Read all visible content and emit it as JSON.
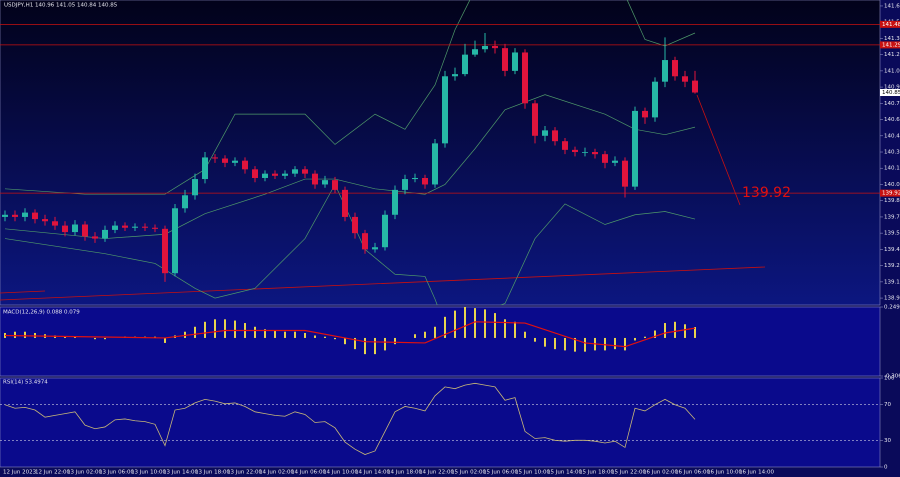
{
  "chart_data": [
    {
      "type": "candlestick",
      "title": "USDJPY,H1 140.96 141.05 140.84 140.85",
      "open": [
        139.7,
        139.72,
        139.7,
        139.74,
        139.68,
        139.66,
        139.62,
        139.56,
        139.63,
        139.52,
        139.5,
        139.58,
        139.62,
        139.6,
        139.61,
        139.6,
        139.59,
        139.18,
        139.78,
        139.9,
        140.05,
        140.25,
        140.24,
        140.2,
        140.22,
        140.14,
        140.06,
        140.1,
        140.08,
        140.1,
        140.14,
        140.1,
        140.0,
        140.04,
        139.95,
        139.7,
        139.55,
        139.4,
        139.42,
        139.72,
        139.95,
        140.05,
        140.06,
        140.0,
        140.38,
        141.0,
        141.02,
        141.2,
        141.25,
        141.28,
        141.26,
        141.05,
        141.22,
        140.75,
        140.45,
        140.5,
        140.4,
        140.32,
        140.3,
        140.3,
        140.28,
        140.2,
        140.22,
        139.98,
        140.68,
        140.62,
        140.95,
        141.15,
        141.0,
        140.96
      ],
      "high": [
        139.76,
        139.76,
        139.78,
        139.77,
        139.72,
        139.7,
        139.66,
        139.67,
        139.66,
        139.56,
        139.62,
        139.66,
        139.65,
        139.64,
        139.64,
        139.63,
        139.62,
        139.82,
        139.95,
        140.1,
        140.3,
        140.28,
        140.27,
        140.25,
        140.25,
        140.17,
        140.13,
        140.13,
        140.13,
        140.17,
        140.17,
        140.13,
        140.08,
        140.07,
        139.98,
        139.74,
        139.58,
        139.46,
        139.76,
        139.99,
        140.09,
        140.1,
        140.09,
        140.42,
        141.05,
        141.08,
        141.3,
        141.33,
        141.4,
        141.33,
        141.3,
        141.26,
        141.25,
        140.78,
        140.54,
        140.53,
        140.43,
        140.35,
        140.34,
        140.33,
        140.31,
        140.26,
        140.25,
        140.72,
        140.71,
        140.99,
        141.36,
        141.18,
        141.05,
        141.05
      ],
      "low": [
        139.66,
        139.66,
        139.66,
        139.64,
        139.62,
        139.58,
        139.52,
        139.53,
        139.48,
        139.46,
        139.47,
        139.55,
        139.57,
        139.57,
        139.57,
        139.56,
        139.1,
        139.15,
        139.74,
        139.86,
        140.01,
        140.2,
        140.16,
        140.17,
        140.1,
        140.02,
        140.03,
        140.05,
        140.05,
        140.07,
        140.06,
        139.96,
        139.97,
        139.92,
        139.66,
        139.5,
        139.36,
        139.37,
        139.39,
        139.68,
        139.91,
        140.02,
        139.96,
        139.97,
        140.34,
        140.96,
        141.0,
        141.18,
        141.22,
        141.21,
        141.0,
        141.02,
        140.7,
        140.38,
        140.4,
        140.36,
        140.28,
        140.26,
        140.26,
        140.24,
        140.15,
        140.17,
        139.88,
        139.95,
        140.56,
        140.58,
        140.9,
        140.96,
        140.9,
        140.84
      ],
      "close": [
        139.72,
        139.7,
        139.74,
        139.68,
        139.66,
        139.62,
        139.56,
        139.63,
        139.52,
        139.5,
        139.58,
        139.62,
        139.6,
        139.61,
        139.6,
        139.59,
        139.18,
        139.78,
        139.9,
        140.05,
        140.25,
        140.24,
        140.2,
        140.22,
        140.14,
        140.06,
        140.1,
        140.08,
        140.1,
        140.14,
        140.1,
        140.0,
        140.04,
        139.95,
        139.7,
        139.55,
        139.4,
        139.42,
        139.72,
        139.95,
        140.05,
        140.06,
        140.0,
        140.38,
        141.0,
        141.02,
        141.2,
        141.25,
        141.28,
        141.26,
        141.05,
        141.22,
        140.75,
        140.45,
        140.5,
        140.4,
        140.32,
        140.3,
        140.3,
        140.28,
        140.2,
        140.22,
        139.98,
        140.68,
        140.62,
        140.95,
        141.15,
        141.0,
        140.95,
        140.85
      ],
      "up_color": "#26b8a6",
      "down_color": "#e0143c",
      "band_color": "#4f9a6a",
      "bands": [
        {
          "x": [
            0,
            8,
            16,
            20,
            23,
            30,
            33,
            37,
            40,
            43,
            45,
            47,
            62,
            64,
            66,
            69
          ],
          "values": [
            139.96,
            139.91,
            139.91,
            140.14,
            140.65,
            140.65,
            140.37,
            140.65,
            140.51,
            140.92,
            141.43,
            141.8,
            141.75,
            141.34,
            141.28,
            141.4
          ]
        },
        {
          "x": [
            0,
            10,
            16,
            20,
            26,
            30,
            33,
            37,
            42,
            44,
            47,
            50,
            54,
            60,
            63,
            66,
            69
          ],
          "values": [
            139.59,
            139.5,
            139.54,
            139.73,
            139.91,
            140.05,
            140.05,
            139.96,
            139.91,
            140.0,
            140.33,
            140.69,
            140.83,
            140.65,
            140.51,
            140.46,
            140.53
          ]
        },
        {
          "x": [
            0,
            10,
            15,
            19,
            21,
            25,
            30,
            33,
            36,
            39,
            42,
            43,
            44,
            50,
            53,
            56,
            60,
            63,
            66,
            69
          ],
          "values": [
            139.5,
            139.36,
            139.27,
            139.04,
            138.95,
            139.04,
            139.5,
            140.0,
            139.4,
            139.17,
            139.15,
            138.94,
            138.7,
            138.9,
            139.5,
            139.82,
            139.63,
            139.72,
            139.75,
            139.68
          ]
        }
      ],
      "levels": [
        141.48,
        141.29,
        139.92
      ],
      "level_color": "#c81010",
      "ylim": [
        138.886,
        141.705
      ],
      "yticks": [
        141.65,
        {
          "value": 141.5,
          "label": "141.50"
        },
        141.35,
        {
          "value": 141.2,
          "label": "141.20"
        },
        141.05,
        {
          "value": 140.9,
          "label": "140.90"
        },
        140.75,
        {
          "value": 140.6,
          "label": "140.60"
        },
        140.45,
        {
          "value": 140.3,
          "label": "140.30"
        },
        140.15,
        {
          "value": 140,
          "label": "140.00"
        },
        139.85,
        {
          "value": 139.7,
          "label": "139.70"
        },
        139.55,
        {
          "value": 139.4,
          "label": "139.40"
        },
        139.25,
        {
          "value": 139.1,
          "label": "139.10"
        },
        138.95
      ],
      "x_labels": [
        "12 Jun 2023",
        "12 Jun 22:00",
        "13 Jun 02:00",
        "13 Jun 06:00",
        "13 Jun 10:00",
        "13 Jun 14:00",
        "13 Jun 18:00",
        "13 Jun 22:00",
        "14 Jun 02:00",
        "14 Jun 06:00",
        "14 Jun 10:00",
        "14 Jun 14:00",
        "14 Jun 18:00",
        "14 Jun 22:00",
        "15 Jun 02:00",
        "15 Jun 06:00",
        "15 Jun 10:00",
        "15 Jun 14:00",
        "15 Jun 18:00",
        "15 Jun 22:00",
        "16 Jun 02:00",
        "16 Jun 06:00",
        "16 Jun 10:00",
        "16 Jun 14:00"
      ]
    },
    {
      "type": "bar",
      "title": "MACD(12,26,9) 0.088 0.079",
      "color": "#e8d44d",
      "values": [
        0.04,
        0.05,
        0.05,
        0.04,
        0.03,
        0.02,
        0.01,
        0.01,
        0.0,
        -0.01,
        -0.01,
        0.0,
        0.01,
        0.01,
        0.01,
        0.01,
        -0.04,
        0.02,
        0.05,
        0.09,
        0.13,
        0.15,
        0.15,
        0.14,
        0.12,
        0.09,
        0.07,
        0.06,
        0.05,
        0.05,
        0.04,
        0.02,
        0.01,
        -0.01,
        -0.05,
        -0.09,
        -0.13,
        -0.13,
        -0.1,
        -0.05,
        0.0,
        0.03,
        0.05,
        0.09,
        0.17,
        0.22,
        0.25,
        0.24,
        0.23,
        0.2,
        0.15,
        0.13,
        0.05,
        -0.03,
        -0.07,
        -0.09,
        -0.1,
        -0.11,
        -0.11,
        -0.1,
        -0.1,
        -0.09,
        -0.1,
        -0.02,
        0.01,
        0.06,
        0.12,
        0.13,
        0.11,
        0.088
      ],
      "signal": {
        "x": [
          0,
          8,
          16,
          22,
          30,
          36,
          42,
          47,
          52,
          58,
          62,
          66,
          69
        ],
        "values": [
          0.02,
          0.01,
          0.0,
          0.06,
          0.06,
          -0.03,
          -0.04,
          0.13,
          0.12,
          -0.04,
          -0.07,
          0.04,
          0.079
        ],
        "color": "#e01010"
      },
      "ylim": [
        -0.306,
        0.249
      ],
      "yticks": [
        0.249,
        -0.306
      ]
    },
    {
      "type": "line",
      "title": "RSI(14) 53.4974",
      "color": "#c8b878",
      "values": [
        70,
        66,
        67,
        64,
        56,
        58,
        60,
        62,
        47,
        43,
        45,
        53,
        54,
        52,
        51,
        48,
        24,
        64,
        66,
        72,
        76,
        74,
        71,
        72,
        68,
        62,
        60,
        58,
        57,
        62,
        59,
        50,
        51,
        44,
        28,
        20,
        14,
        18,
        40,
        62,
        68,
        66,
        63,
        80,
        90,
        88,
        92,
        94,
        92,
        90,
        75,
        78,
        40,
        32,
        33,
        30,
        29,
        30,
        30,
        29,
        27,
        29,
        22,
        66,
        63,
        70,
        76,
        70,
        66,
        53.4974
      ],
      "ylim": [
        0,
        100
      ],
      "yticks": [
        100,
        70,
        30,
        0
      ]
    }
  ]
}
